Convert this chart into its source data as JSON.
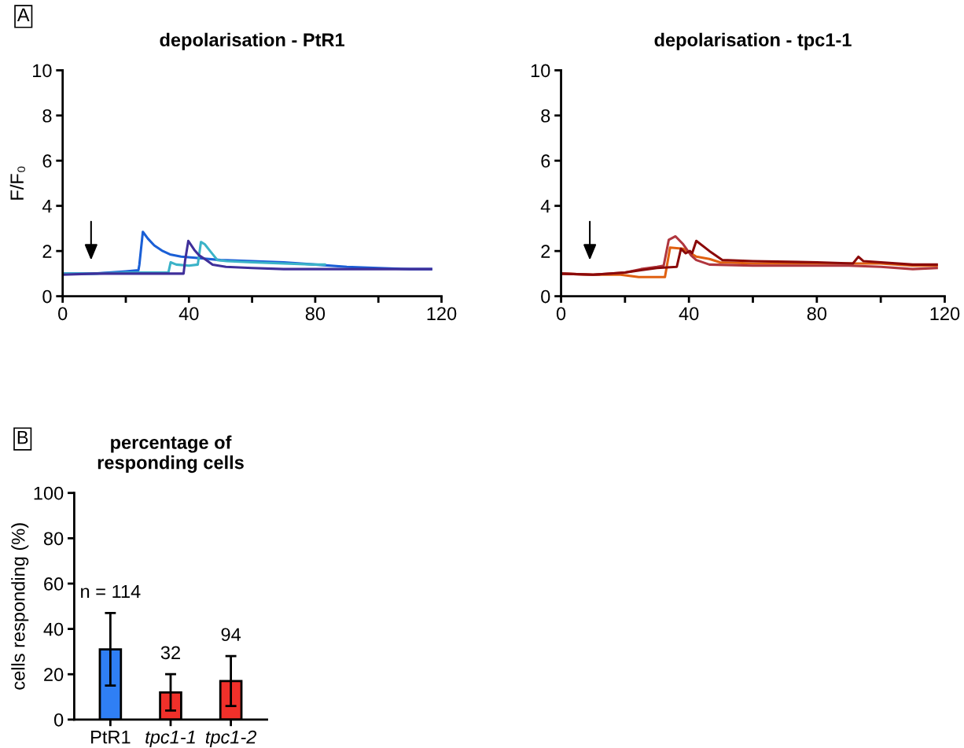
{
  "chart_data": [
    {
      "type": "line",
      "title": "depolarisation - PtR1",
      "ylabel": "F/F₀",
      "xlim": [
        0,
        120
      ],
      "ylim": [
        0,
        10
      ],
      "xticks": [
        0,
        {
          "value": 20,
          "label": null
        },
        40,
        {
          "value": 60,
          "label": null
        },
        80,
        {
          "value": 100,
          "label": null
        },
        120
      ],
      "yticks": [
        0,
        2,
        4,
        6,
        8,
        10
      ],
      "grid": false,
      "legend": false,
      "annotations": [
        "A"
      ],
      "series": [
        {
          "color": "#1a5fd6",
          "x": [
            0,
            10,
            20,
            24,
            24.3,
            25.4,
            27,
            29,
            31.7,
            34,
            37.5,
            42,
            50,
            60,
            70,
            80,
            90,
            100,
            110,
            116.7
          ],
          "values": [
            1.0,
            1.0,
            1.1,
            1.15,
            1.4,
            2.85,
            2.55,
            2.25,
            2.0,
            1.85,
            1.75,
            1.7,
            1.6,
            1.55,
            1.5,
            1.4,
            1.3,
            1.25,
            1.2,
            1.2
          ]
        },
        {
          "color": "#3bb3c8",
          "x": [
            0,
            10,
            20,
            30,
            33.5,
            34.2,
            36,
            40,
            42.8,
            43.8,
            45,
            46.7,
            49,
            52,
            60,
            70,
            80,
            83
          ],
          "values": [
            1.0,
            1.0,
            1.05,
            1.05,
            1.05,
            1.5,
            1.4,
            1.35,
            1.4,
            2.4,
            2.3,
            2.0,
            1.6,
            1.55,
            1.5,
            1.45,
            1.4,
            1.4
          ]
        },
        {
          "color": "#3f2f9a",
          "x": [
            0,
            10,
            20,
            30,
            38.3,
            38.8,
            39.8,
            41.7,
            43.3,
            45,
            47.5,
            51.7,
            60,
            70,
            80,
            90,
            100,
            110,
            116.7
          ],
          "values": [
            0.95,
            1.0,
            1.0,
            1.0,
            1.0,
            1.6,
            2.45,
            2.05,
            1.8,
            1.65,
            1.4,
            1.3,
            1.25,
            1.2,
            1.2,
            1.2,
            1.2,
            1.2,
            1.2
          ]
        }
      ]
    },
    {
      "type": "line",
      "title": "depolarisation - tpc1-1",
      "xlim": [
        0,
        120
      ],
      "ylim": [
        0,
        10
      ],
      "xticks": [
        0,
        {
          "value": 20,
          "label": null
        },
        40,
        {
          "value": 60,
          "label": null
        },
        80,
        {
          "value": 100,
          "label": null
        },
        120
      ],
      "yticks": [
        0,
        2,
        4,
        6,
        8,
        10
      ],
      "grid": false,
      "legend": false,
      "series": [
        {
          "color": "#e06010",
          "x": [
            0,
            10,
            18.6,
            24.3,
            32.5,
            33.3,
            34.1,
            38.2,
            42.3,
            46.4,
            49.7,
            60,
            80,
            100,
            110,
            117.5
          ],
          "values": [
            1.0,
            0.95,
            0.95,
            0.85,
            0.85,
            1.5,
            2.15,
            2.1,
            1.75,
            1.65,
            1.5,
            1.45,
            1.45,
            1.45,
            1.35,
            1.35
          ]
        },
        {
          "color": "#b0363e",
          "x": [
            0,
            10,
            20,
            25,
            30,
            32.1,
            33.7,
            35.8,
            38.2,
            40.7,
            42.3,
            46.4,
            60,
            90,
            100,
            110,
            117.5
          ],
          "values": [
            1.0,
            0.95,
            1.05,
            1.2,
            1.3,
            1.35,
            2.5,
            2.65,
            2.3,
            1.8,
            1.6,
            1.4,
            1.35,
            1.35,
            1.3,
            1.2,
            1.25
          ]
        },
        {
          "color": "#8b0a0a",
          "x": [
            0,
            10,
            20,
            25,
            30,
            36.2,
            37.5,
            39,
            40.3,
            41,
            42.3,
            46.4,
            50.5,
            60,
            80,
            91.3,
            93,
            94.6,
            100,
            110,
            117.5
          ],
          "values": [
            1.0,
            0.95,
            1.05,
            1.15,
            1.25,
            1.3,
            2.1,
            1.9,
            2.0,
            1.9,
            2.45,
            2.0,
            1.6,
            1.55,
            1.5,
            1.45,
            1.75,
            1.55,
            1.5,
            1.4,
            1.4
          ]
        }
      ]
    },
    {
      "type": "bar",
      "title": "percentage of\nresponding cells",
      "ylabel": "cells responding (%)",
      "categories": [
        "PtR1",
        "tpc1-1",
        "tpc1-2"
      ],
      "values": [
        31,
        12,
        17
      ],
      "colors": [
        "#2f7ff5",
        "#f0302a",
        "#f0302a"
      ],
      "errors": [
        [
          15,
          47
        ],
        [
          4,
          20
        ],
        [
          6,
          28
        ]
      ],
      "ylim": [
        0,
        100
      ],
      "yticks": [
        0,
        20,
        40,
        60,
        80,
        100
      ],
      "grid": false,
      "legend": false,
      "annotations": [
        "B",
        "n = 114",
        "32",
        "94"
      ]
    }
  ]
}
